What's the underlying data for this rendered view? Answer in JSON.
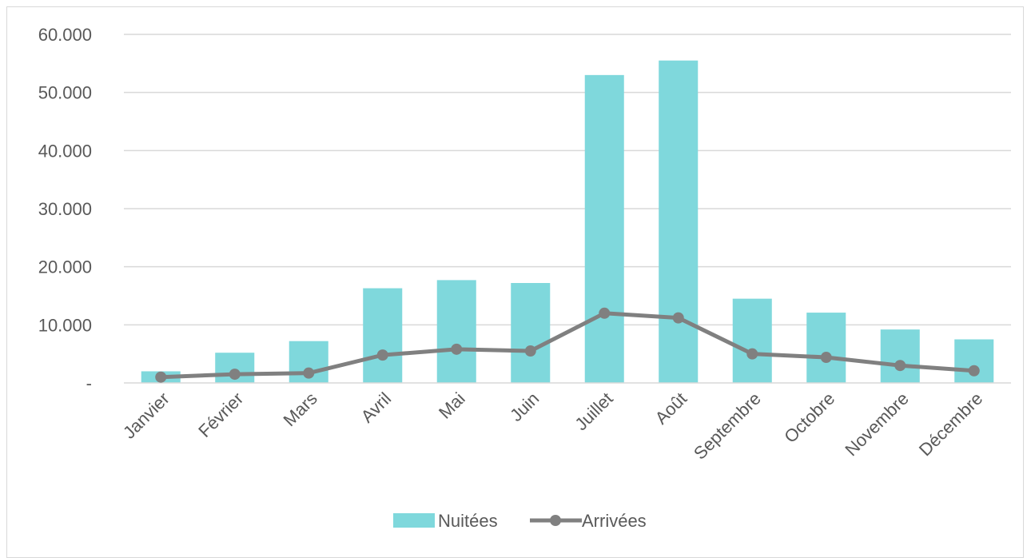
{
  "chart_data": {
    "type": "bar",
    "categories": [
      "Janvier",
      "Février",
      "Mars",
      "Avril",
      "Mai",
      "Juin",
      "Juillet",
      "Août",
      "Septembre",
      "Octobre",
      "Novembre",
      "Décembre"
    ],
    "series": [
      {
        "name": "Nuitées",
        "type": "bar",
        "color": "#7fd8dc",
        "values": [
          2000,
          5200,
          7200,
          16300,
          17700,
          17200,
          53000,
          55500,
          14500,
          12100,
          9200,
          7500
        ]
      },
      {
        "name": "Arrivées",
        "type": "line",
        "color": "#808080",
        "values": [
          1000,
          1500,
          1700,
          4800,
          5800,
          5500,
          12000,
          11200,
          5000,
          4400,
          3000,
          2100
        ]
      }
    ],
    "ylim": [
      0,
      60000
    ],
    "yticks": [
      0,
      10000,
      20000,
      30000,
      40000,
      50000,
      60000
    ],
    "ytick_labels": [
      "-",
      "10.000",
      "20.000",
      "30.000",
      "40.000",
      "50.000",
      "60.000"
    ],
    "grid": true,
    "legend_position": "bottom",
    "title": "",
    "xlabel": "",
    "ylabel": ""
  }
}
